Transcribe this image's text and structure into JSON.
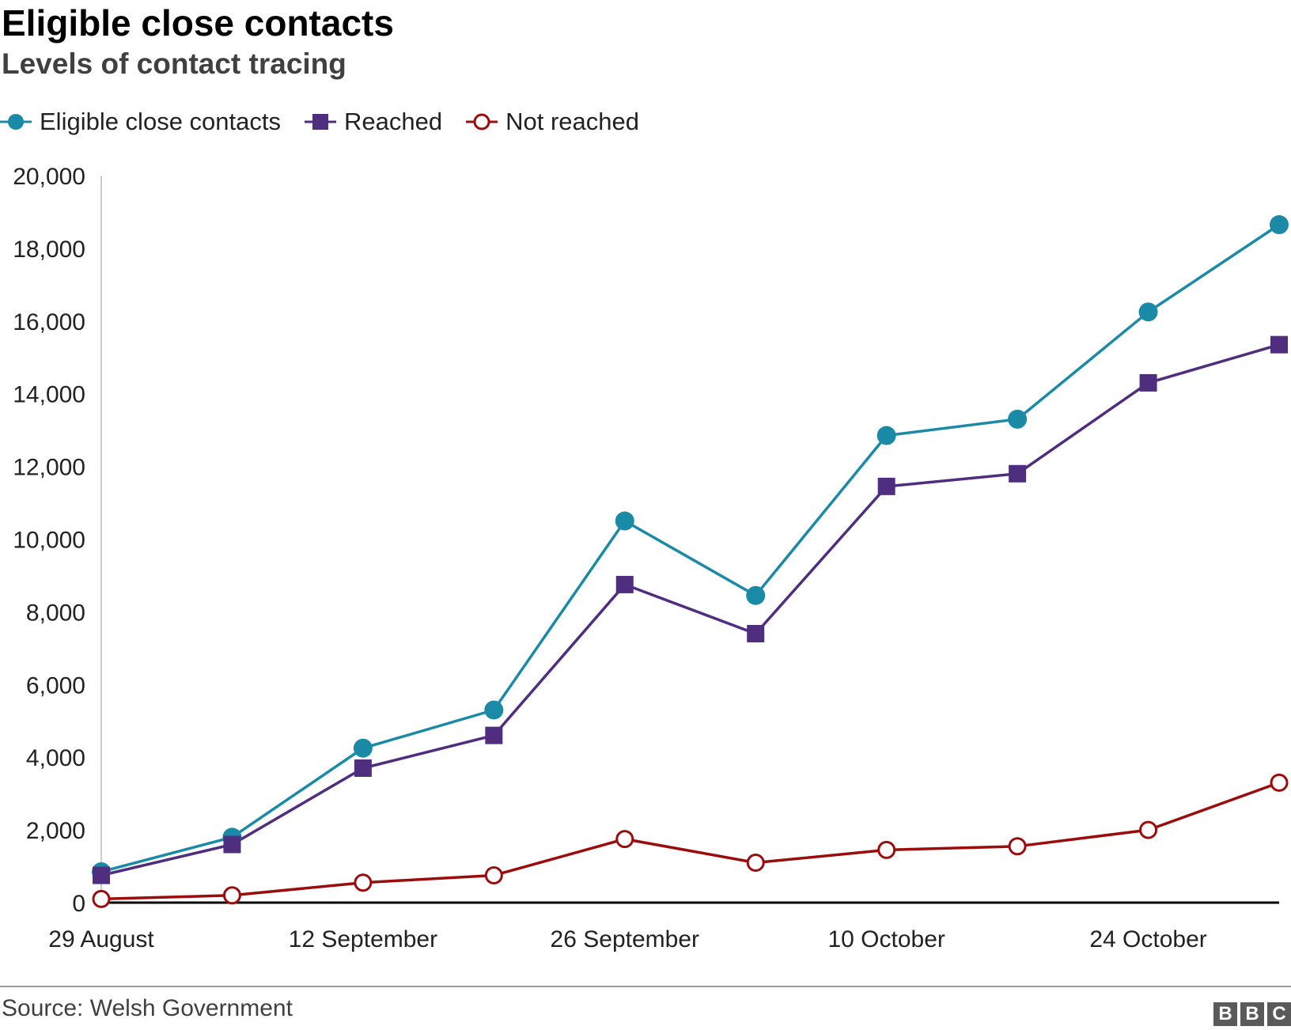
{
  "header": {
    "title": "Eligible close contacts",
    "subtitle": "Levels of contact tracing"
  },
  "footer": {
    "source": "Source: Welsh Government",
    "logo_letters": [
      "B",
      "B",
      "C"
    ]
  },
  "colors": {
    "eligible": "#1a8aa6",
    "reached": "#4f2d7f",
    "not_reached": "#9b0d0d",
    "axis": "#000000",
    "gridline_axis": "#cccccc"
  },
  "legend": [
    {
      "label": "Eligible close contacts",
      "marker": "circle-filled-icon"
    },
    {
      "label": "Reached",
      "marker": "square-filled-icon"
    },
    {
      "label": "Not reached",
      "marker": "circle-hollow-icon"
    }
  ],
  "chart_data": {
    "type": "line",
    "title": "Eligible close contacts",
    "subtitle": "Levels of contact tracing",
    "xlabel": "",
    "ylabel": "",
    "ylim": [
      0,
      20000
    ],
    "yticks": [
      0,
      2000,
      4000,
      6000,
      8000,
      10000,
      12000,
      14000,
      16000,
      18000,
      20000
    ],
    "ytick_labels": [
      "0",
      "2,000",
      "4,000",
      "6,000",
      "8,000",
      "10,000",
      "12,000",
      "14,000",
      "16,000",
      "18,000",
      "20,000"
    ],
    "x_count": 10,
    "xtick_positions": [
      0,
      2,
      4,
      6,
      8
    ],
    "xtick_labels": [
      "29 August",
      "12 September",
      "26 September",
      "10 October",
      "24 October"
    ],
    "legend_position": "top-left",
    "series": [
      {
        "name": "Eligible close contacts",
        "marker": "circle",
        "values": [
          850,
          1800,
          4250,
          5300,
          10500,
          8450,
          12850,
          13300,
          16250,
          18650
        ]
      },
      {
        "name": "Reached",
        "marker": "square",
        "values": [
          750,
          1600,
          3700,
          4600,
          8750,
          7400,
          11450,
          11800,
          14300,
          15350
        ]
      },
      {
        "name": "Not reached",
        "marker": "hollow-circle",
        "values": [
          100,
          200,
          550,
          750,
          1750,
          1100,
          1450,
          1550,
          2000,
          3300
        ]
      }
    ]
  }
}
